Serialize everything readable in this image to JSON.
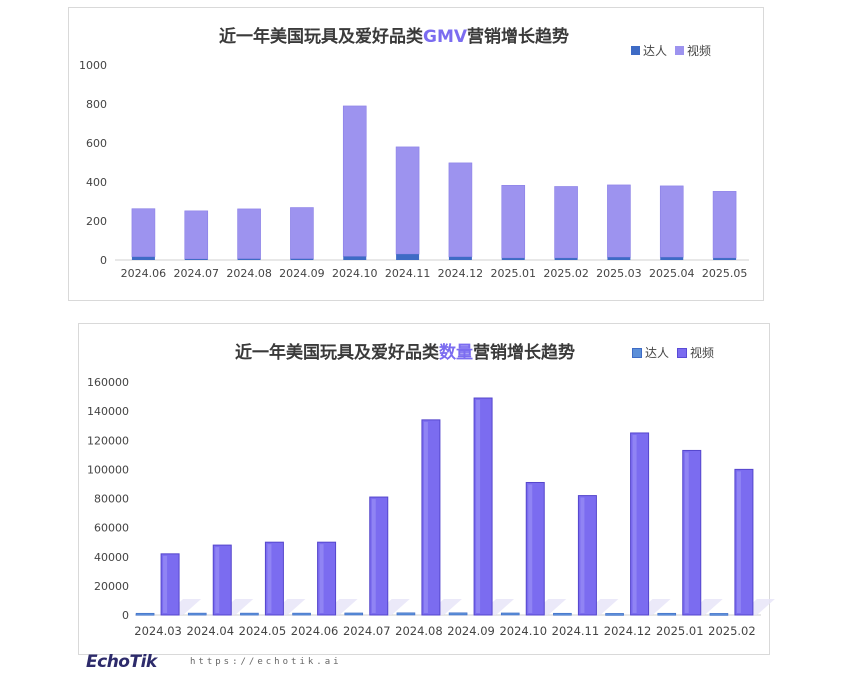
{
  "colors": {
    "daren": "#3e6bc5",
    "video": "#9d93ef",
    "video_vivid": "#7b6cf0",
    "highlight": "#7b6cf0"
  },
  "chart1": {
    "title_pre": "近一年美国玩具及爱好品类",
    "title_hl": "GMV",
    "title_post": "营销增长趋势",
    "legend": [
      "达人",
      "视频"
    ]
  },
  "chart2": {
    "title_pre": "近一年美国玩具及爱好品类",
    "title_hl": "数量",
    "title_post": "营销增长趋势",
    "legend": [
      "达人",
      "视频"
    ]
  },
  "footer": {
    "logo": "EchoTik",
    "url": "https://echotik.ai"
  },
  "chart_data": [
    {
      "type": "bar",
      "stacked": true,
      "title": "近一年美国玩具及爱好品类GMV营销增长趋势",
      "categories": [
        "2024.06",
        "2024.07",
        "2024.08",
        "2024.09",
        "2024.10",
        "2024.11",
        "2024.12",
        "2025.01",
        "2025.02",
        "2025.03",
        "2025.04",
        "2025.05"
      ],
      "series": [
        {
          "name": "达人",
          "values": [
            16,
            5,
            6,
            6,
            18,
            30,
            16,
            10,
            10,
            14,
            14,
            10
          ]
        },
        {
          "name": "视频",
          "values": [
            247,
            247,
            256,
            263,
            772,
            550,
            482,
            373,
            367,
            371,
            366,
            342
          ]
        }
      ],
      "ylim": [
        0,
        1000
      ],
      "yticks": [
        0,
        200,
        400,
        600,
        800,
        1000
      ],
      "legend_position": "top-right",
      "grid": false
    },
    {
      "type": "bar",
      "stacked": false,
      "title": "近一年美国玩具及爱好品类数量营销增长趋势",
      "categories": [
        "2024.03",
        "2024.04",
        "2024.05",
        "2024.06",
        "2024.07",
        "2024.08",
        "2024.09",
        "2024.10",
        "2024.11",
        "2024.12",
        "2025.01",
        "2025.02"
      ],
      "series": [
        {
          "name": "达人",
          "values": [
            1200,
            1300,
            1300,
            1300,
            1400,
            1500,
            1500,
            1400,
            1200,
            1100,
            1200,
            1100
          ]
        },
        {
          "name": "视频",
          "values": [
            42000,
            48000,
            50000,
            50000,
            81000,
            134000,
            149000,
            91000,
            82000,
            125000,
            113000,
            100000
          ]
        }
      ],
      "ylim": [
        0,
        160000
      ],
      "yticks": [
        0,
        20000,
        40000,
        60000,
        80000,
        100000,
        120000,
        140000,
        160000
      ],
      "legend_position": "top-right",
      "grid": false
    }
  ]
}
